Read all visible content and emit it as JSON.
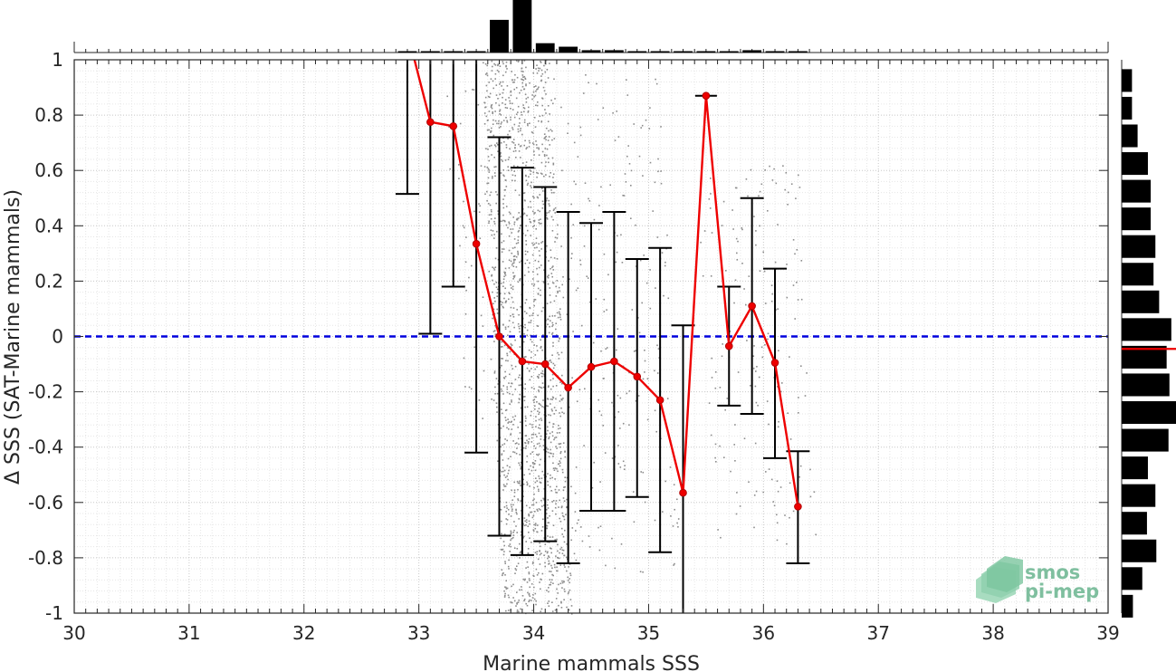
{
  "chart_data": {
    "type": "scatter",
    "xlabel": "Marine mammals SSS",
    "ylabel": "Δ SSS (SAT-Marine mammals)",
    "xlim": [
      30,
      39
    ],
    "ylim": [
      -1,
      1
    ],
    "xticks": [
      30,
      31,
      32,
      33,
      34,
      35,
      36,
      37,
      38,
      39
    ],
    "yticks": [
      -1,
      -0.8,
      -0.6,
      -0.4,
      -0.2,
      0,
      0.2,
      0.4,
      0.6,
      0.8,
      1
    ],
    "xtick_labels": [
      "30",
      "31",
      "32",
      "33",
      "34",
      "35",
      "36",
      "37",
      "38",
      "39"
    ],
    "ytick_labels": [
      "-1",
      "-0.8",
      "-0.6",
      "-0.4",
      "-0.2",
      "0",
      "0.2",
      "0.4",
      "0.6",
      "0.8",
      "1"
    ],
    "grid": true,
    "zero_line": {
      "y": 0,
      "color": "#0000dd",
      "style": "dashed"
    },
    "binned_mean": {
      "color": "#ee0000",
      "x": [
        32.9,
        33.1,
        33.3,
        33.5,
        33.7,
        33.9,
        34.1,
        34.3,
        34.5,
        34.7,
        34.9,
        35.1,
        35.3,
        35.5,
        35.7,
        35.9,
        36.1,
        36.3
      ],
      "y": [
        1.1,
        0.775,
        0.76,
        0.335,
        0.0,
        -0.09,
        -0.1,
        -0.185,
        -0.11,
        -0.09,
        -0.145,
        -0.23,
        -0.565,
        0.87,
        -0.035,
        0.11,
        -0.095,
        -0.615
      ],
      "err_low": [
        0.515,
        0.01,
        0.18,
        -0.42,
        -0.72,
        -0.79,
        -0.74,
        -0.82,
        -0.63,
        -0.63,
        -0.58,
        -0.78,
        -1.1,
        0.87,
        -0.25,
        -0.28,
        -0.44,
        -0.82
      ],
      "err_high": [
        1.1,
        1.1,
        1.1,
        1.1,
        0.72,
        0.61,
        0.54,
        0.45,
        0.41,
        0.45,
        0.28,
        0.32,
        0.04,
        0.87,
        0.18,
        0.5,
        0.245,
        -0.415
      ]
    },
    "scatter_color": "#8c8c8c",
    "top_histogram": {
      "bin_centers": [
        32.9,
        33.1,
        33.3,
        33.5,
        33.7,
        33.9,
        34.1,
        34.3,
        34.5,
        34.7,
        34.9,
        35.1,
        35.3,
        35.5,
        35.7,
        35.9,
        36.1,
        36.3
      ],
      "counts": [
        1,
        1,
        1,
        1,
        28,
        45,
        8,
        5,
        2,
        2,
        1,
        1,
        1,
        1,
        1,
        2,
        1,
        1
      ]
    },
    "right_histogram": {
      "bin_centers": [
        -0.975,
        -0.875,
        -0.775,
        -0.675,
        -0.575,
        -0.475,
        -0.375,
        -0.275,
        -0.175,
        -0.075,
        0.025,
        0.125,
        0.225,
        0.325,
        0.425,
        0.525,
        0.625,
        0.725,
        0.825,
        0.925
      ],
      "counts": [
        12,
        22,
        37,
        27,
        36,
        28,
        50,
        58,
        51,
        48,
        53,
        40,
        34,
        36,
        31,
        31,
        28,
        17,
        11,
        11
      ],
      "median": -0.045,
      "median_color": "#ee0000"
    },
    "logo": {
      "line1": "smos",
      "line2": "pi-mep"
    }
  }
}
